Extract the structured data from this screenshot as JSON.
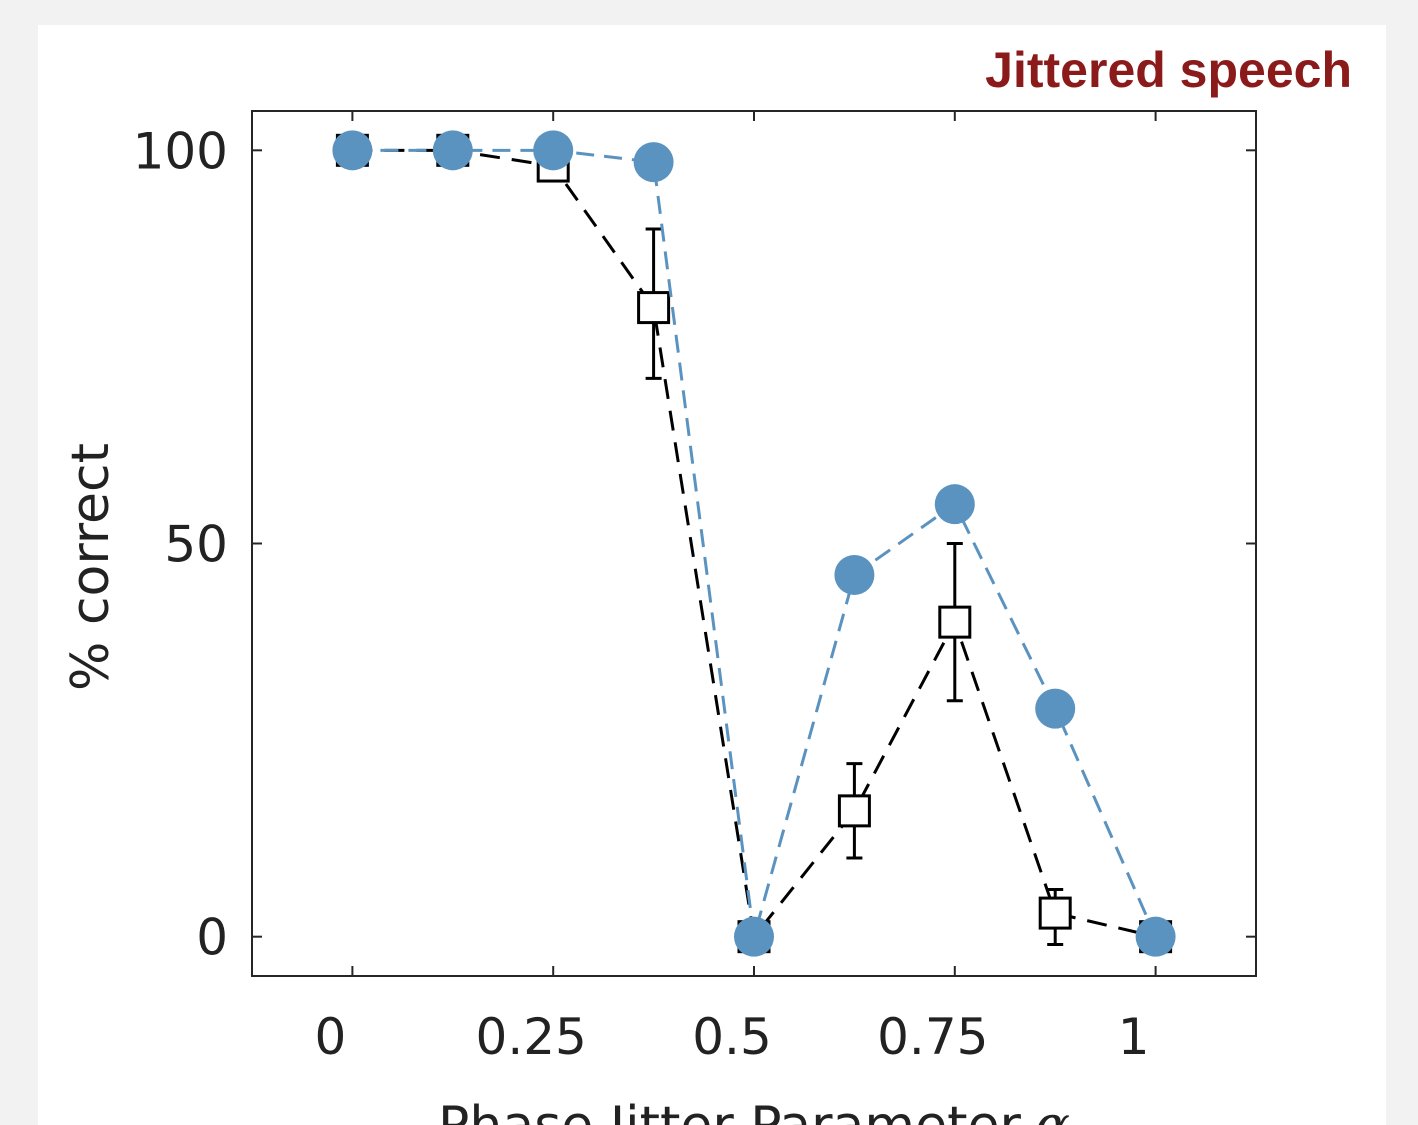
{
  "chart_data": {
    "type": "line",
    "title": "Jittered speech",
    "title_color": "#8b1a1a",
    "xlabel": "Phase Jitter Parameter",
    "xlabel_symbol": "α",
    "ylabel": "% correct",
    "xlim": [
      -0.125,
      1.125
    ],
    "ylim": [
      -5,
      105
    ],
    "xticks": [
      0,
      0.25,
      0.5,
      0.75,
      1
    ],
    "xtick_labels": [
      "0",
      "0.25",
      "0.5",
      "0.75",
      "1"
    ],
    "yticks": [
      0,
      50,
      100
    ],
    "ytick_labels": [
      "0",
      "50",
      "100"
    ],
    "grid": false,
    "series": [
      {
        "marker": "open-square",
        "line_style": "dashed",
        "color": "#000000",
        "x": [
          0,
          0.125,
          0.25,
          0.375,
          0.5,
          0.625,
          0.75,
          0.875,
          1
        ],
        "y": [
          100,
          100,
          98,
          80,
          0,
          16,
          40,
          3,
          0
        ],
        "yerr_low": [
          0,
          0,
          0,
          71,
          0,
          10,
          30,
          -1,
          0
        ],
        "yerr_high": [
          0,
          0,
          0,
          90,
          0,
          22,
          50,
          6,
          0
        ]
      },
      {
        "marker": "filled-circle",
        "line_style": "dashed",
        "color": "#5b93c0",
        "x": [
          0,
          0.125,
          0.25,
          0.375,
          0.5,
          0.625,
          0.75,
          0.875,
          1
        ],
        "y": [
          100,
          100,
          100,
          98.5,
          0,
          46,
          55,
          29,
          0
        ]
      }
    ]
  }
}
